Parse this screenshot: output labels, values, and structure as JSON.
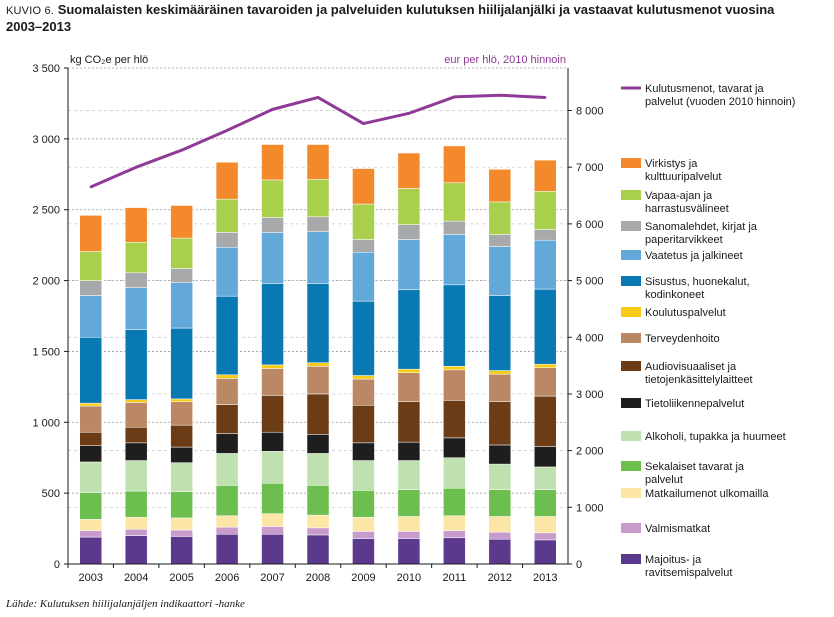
{
  "title": {
    "kuvio": "KUVIO 6.",
    "line1": "Suomalaisten keskimääräinen tavaroiden ja palveluiden kulutuksen hiilijalanjälki ja vastaavat kulutusmenot vuosina",
    "line2": "2003–2013"
  },
  "source": "Lähde: Kulutuksen hiilijalanjäljen indikaattori -hanke",
  "chart_data": {
    "type": "bar",
    "stacked": true,
    "categories": [
      "2003",
      "2004",
      "2005",
      "2006",
      "2007",
      "2008",
      "2009",
      "2010",
      "2011",
      "2012",
      "2013"
    ],
    "y_left": {
      "unit_label": "kg CO₂e per hlö",
      "ylim": [
        0,
        3500
      ],
      "ticks": [
        0,
        500,
        1000,
        1500,
        2000,
        2500,
        3000,
        3500
      ],
      "tick_labels": [
        "0",
        "500",
        "1 000",
        "1 500",
        "2 000",
        "2 500",
        "3 000",
        "3 500"
      ]
    },
    "y_right": {
      "unit_label": "eur per hlö, 2010 hinnoin",
      "ylim": [
        0,
        8750
      ],
      "ticks": [
        0,
        1000,
        2000,
        3000,
        4000,
        5000,
        6000,
        7000,
        8000
      ],
      "tick_labels": [
        "0",
        "1 000",
        "2 000",
        "3 000",
        "4 000",
        "5 000",
        "6 000",
        "7 000",
        "8 000"
      ]
    },
    "grid": "dashed",
    "legend_position": "right",
    "series": [
      {
        "name": "Majoitus- ja ravitsemispalvelut",
        "color": "#5b3a8e",
        "values": [
          190,
          200,
          195,
          210,
          210,
          205,
          180,
          180,
          185,
          175,
          170
        ]
      },
      {
        "name": "Valmismatkat",
        "color": "#c79bcc",
        "values": [
          45,
          45,
          45,
          50,
          55,
          50,
          50,
          50,
          50,
          50,
          50
        ]
      },
      {
        "name": "Matkailumenot ulkomailla",
        "color": "#fbe6a6",
        "values": [
          80,
          85,
          85,
          80,
          90,
          90,
          100,
          105,
          105,
          110,
          115
        ]
      },
      {
        "name": "Sekalaiset tavarat ja palvelut",
        "color": "#6cbf4e",
        "values": [
          190,
          185,
          185,
          215,
          215,
          210,
          190,
          190,
          195,
          190,
          190
        ]
      },
      {
        "name": "Alkoholi, tupakka ja huumeet",
        "color": "#bfe1af",
        "values": [
          215,
          215,
          205,
          225,
          225,
          225,
          210,
          205,
          215,
          180,
          160
        ]
      },
      {
        "name": "Tietoliikennepalvelut",
        "color": "#1e1e1e",
        "values": [
          115,
          125,
          110,
          140,
          135,
          135,
          125,
          130,
          140,
          135,
          145
        ]
      },
      {
        "name": "Audiovisuaaliset ja tietojenkäsittelylaitteet",
        "color": "#6b3c16",
        "values": [
          95,
          110,
          155,
          205,
          260,
          285,
          265,
          285,
          265,
          305,
          355
        ]
      },
      {
        "name": "Terveydenhoito",
        "color": "#ba8864",
        "values": [
          185,
          175,
          165,
          185,
          190,
          195,
          185,
          205,
          215,
          195,
          200
        ]
      },
      {
        "name": "Koulutuspalvelut",
        "color": "#f7cb16",
        "values": [
          20,
          20,
          20,
          25,
          25,
          25,
          25,
          25,
          25,
          25,
          25
        ]
      },
      {
        "name": "Sisustus, huonekalut, kodinkoneet",
        "color": "#0979b4",
        "values": [
          465,
          495,
          500,
          555,
          575,
          560,
          525,
          560,
          575,
          530,
          530
        ]
      },
      {
        "name": "Vaatetus ja jalkineet",
        "color": "#62a8d8",
        "values": [
          295,
          295,
          320,
          345,
          360,
          365,
          345,
          355,
          355,
          345,
          345
        ]
      },
      {
        "name": "Sanomalehdet, kirjat ja paperitarvikkeet",
        "color": "#a7a9ab",
        "values": [
          105,
          105,
          100,
          105,
          105,
          105,
          90,
          105,
          95,
          85,
          75
        ]
      },
      {
        "name": "Vapaa-ajan ja harrastusvälineet",
        "color": "#a8d04c",
        "values": [
          205,
          215,
          215,
          235,
          265,
          265,
          250,
          255,
          270,
          230,
          270
        ]
      },
      {
        "name": "Virkistys ja kulttuuripalvelut",
        "color": "#f4892b",
        "values": [
          255,
          245,
          230,
          260,
          250,
          245,
          250,
          250,
          260,
          230,
          220
        ]
      }
    ],
    "line_series": {
      "name": "Kulutusmenot, tavarat ja palvelut (vuoden 2010 hinnoin)",
      "axis": "right",
      "color": "#8e3a96",
      "values": [
        6650,
        7000,
        7300,
        7650,
        8020,
        8230,
        7770,
        7950,
        8240,
        8270,
        8230
      ]
    }
  }
}
